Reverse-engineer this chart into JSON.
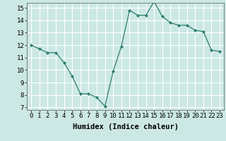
{
  "x": [
    0,
    1,
    2,
    3,
    4,
    5,
    6,
    7,
    8,
    9,
    10,
    11,
    12,
    13,
    14,
    15,
    16,
    17,
    18,
    19,
    20,
    21,
    22,
    23
  ],
  "y": [
    12.0,
    11.7,
    11.4,
    11.4,
    10.6,
    9.5,
    8.1,
    8.1,
    7.8,
    7.1,
    9.9,
    11.9,
    14.8,
    14.4,
    14.4,
    15.5,
    14.3,
    13.8,
    13.6,
    13.6,
    13.2,
    13.1,
    11.6,
    11.5
  ],
  "xlabel": "Humidex (Indice chaleur)",
  "xlim_min": -0.5,
  "xlim_max": 23.5,
  "ylim_min": 6.8,
  "ylim_max": 15.4,
  "yticks": [
    7,
    8,
    9,
    10,
    11,
    12,
    13,
    14,
    15
  ],
  "xticks": [
    0,
    1,
    2,
    3,
    4,
    5,
    6,
    7,
    8,
    9,
    10,
    11,
    12,
    13,
    14,
    15,
    16,
    17,
    18,
    19,
    20,
    21,
    22,
    23
  ],
  "line_color": "#2d7d6e",
  "marker": "D",
  "marker_size": 2.0,
  "background_color": "#cce8e4",
  "grid_color": "#ffffff",
  "xlabel_fontsize": 7.5,
  "tick_fontsize": 6.5
}
